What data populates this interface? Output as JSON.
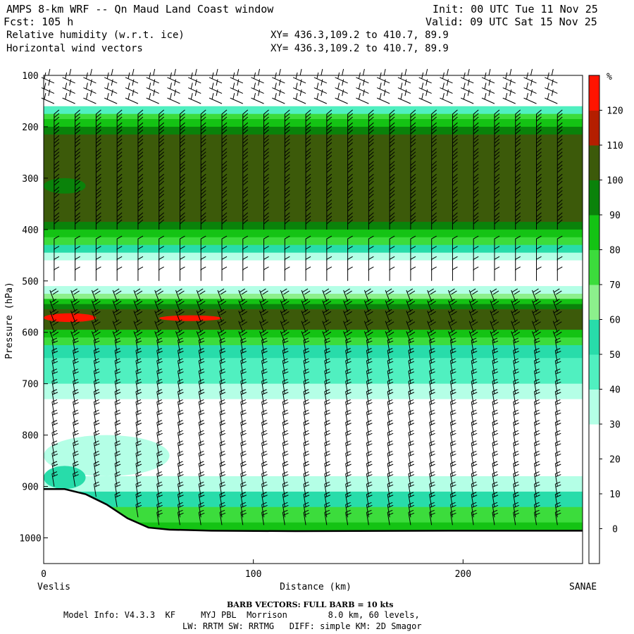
{
  "header": {
    "title": "AMPS 8-km WRF -- Qn Maud Land Coast window",
    "fcst": "Fcst: 105 h",
    "field1": "Relative humidity (w.r.t. ice)",
    "field2": "Horizontal wind vectors",
    "init": "Init: 00 UTC Tue 11 Nov 25",
    "valid": "Valid: 09 UTC Sat 15 Nov 25",
    "xy1": "XY= 436.3,109.2 to 410.7, 89.9",
    "xy2": "XY= 436.3,109.2 to 410.7, 89.9"
  },
  "footer": {
    "barb": "BARB VECTORS: FULL BARB = 10 kts",
    "model1": "Model Info: V4.3.3  KF     MYJ PBL  Morrison        8.0 km, 60 levels,",
    "model2": "LW: RRTM SW: RRTMG   DIFF: simple KM: 2D Smagor"
  },
  "chart_data": {
    "type": "heatmap",
    "xlabel": "Distance (km)",
    "ylabel": "Pressure (hPa)",
    "xlim": [
      0,
      257
    ],
    "ylim": [
      1050,
      100
    ],
    "x_ticks": [
      0,
      100,
      200
    ],
    "y_ticks": [
      100,
      200,
      300,
      400,
      500,
      600,
      700,
      800,
      900,
      1000
    ],
    "x_end_labels": {
      "left": "Veslis",
      "right": "SANAE"
    },
    "colorbar": {
      "unit": "%",
      "levels": [
        0,
        10,
        20,
        30,
        40,
        50,
        60,
        70,
        80,
        90,
        100,
        110,
        120
      ],
      "colors": [
        "#ffffff",
        "#ffffff",
        "#ffffff",
        "#b4ffe6",
        "#50f0c0",
        "#28dcaa",
        "#8cf08c",
        "#3cdc3c",
        "#14c314",
        "#0a820a",
        "#3c5a0a",
        "#b41e00",
        "#ff1400"
      ]
    },
    "terrain": [
      [
        0,
        905
      ],
      [
        10,
        905
      ],
      [
        20,
        915
      ],
      [
        30,
        935
      ],
      [
        40,
        962
      ],
      [
        50,
        980
      ],
      [
        60,
        984
      ],
      [
        80,
        986
      ],
      [
        120,
        987
      ],
      [
        200,
        986
      ],
      [
        257,
        986
      ]
    ],
    "rh_bands": [
      {
        "p0": 100,
        "p1": 160,
        "rh": 10
      },
      {
        "p0": 160,
        "p1": 175,
        "rh": 40
      },
      {
        "p0": 175,
        "p1": 185,
        "rh": 70
      },
      {
        "p0": 185,
        "p1": 200,
        "rh": 85
      },
      {
        "p0": 200,
        "p1": 215,
        "rh": 92
      },
      {
        "p0": 215,
        "p1": 385,
        "rh": 105
      },
      {
        "p0": 385,
        "p1": 400,
        "rh": 92
      },
      {
        "p0": 400,
        "p1": 415,
        "rh": 82
      },
      {
        "p0": 415,
        "p1": 430,
        "rh": 72
      },
      {
        "p0": 430,
        "p1": 445,
        "rh": 55
      },
      {
        "p0": 445,
        "p1": 460,
        "rh": 35
      },
      {
        "p0": 460,
        "p1": 510,
        "rh": 10
      },
      {
        "p0": 510,
        "p1": 525,
        "rh": 35
      },
      {
        "p0": 525,
        "p1": 535,
        "rh": 65
      },
      {
        "p0": 535,
        "p1": 545,
        "rh": 82
      },
      {
        "p0": 545,
        "p1": 555,
        "rh": 95
      },
      {
        "p0": 555,
        "p1": 595,
        "rh": 105
      },
      {
        "p0": 595,
        "p1": 610,
        "rh": 85
      },
      {
        "p0": 610,
        "p1": 625,
        "rh": 70
      },
      {
        "p0": 625,
        "p1": 650,
        "rh": 55
      },
      {
        "p0": 650,
        "p1": 700,
        "rh": 45
      },
      {
        "p0": 700,
        "p1": 730,
        "rh": 35
      },
      {
        "p0": 730,
        "p1": 880,
        "rh": 10
      },
      {
        "p0": 880,
        "p1": 910,
        "rh": 35
      },
      {
        "p0": 910,
        "p1": 940,
        "rh": 55
      },
      {
        "p0": 940,
        "p1": 970,
        "rh": 72
      },
      {
        "p0": 970,
        "p1": 1000,
        "rh": 85
      }
    ],
    "rh_patches": [
      {
        "x0": 0,
        "x1": 25,
        "p0": 563,
        "p1": 580,
        "rh": 125
      },
      {
        "x0": 55,
        "x1": 85,
        "p0": 567,
        "p1": 578,
        "rh": 125
      },
      {
        "x0": 0,
        "x1": 20,
        "p0": 300,
        "p1": 330,
        "rh": 92
      },
      {
        "x0": 0,
        "x1": 60,
        "p0": 800,
        "p1": 880,
        "rh": 35
      },
      {
        "x0": 0,
        "x1": 20,
        "p0": 860,
        "p1": 905,
        "rh": 55
      }
    ],
    "barb_columns_km": [
      5,
      15,
      25,
      35,
      45,
      55,
      65,
      75,
      85,
      95,
      105,
      115,
      125,
      135,
      145,
      155,
      165,
      175,
      185,
      195,
      205,
      215,
      225,
      235,
      245
    ],
    "barb_levels_hPa": [
      115,
      135,
      155,
      200,
      225,
      250,
      275,
      300,
      325,
      350,
      375,
      400,
      440,
      460,
      480,
      500,
      540,
      560,
      580,
      600,
      620,
      640,
      660,
      680,
      700,
      720,
      740,
      760,
      780,
      800,
      820,
      840,
      860,
      880,
      900,
      920,
      940,
      960,
      975
    ]
  }
}
